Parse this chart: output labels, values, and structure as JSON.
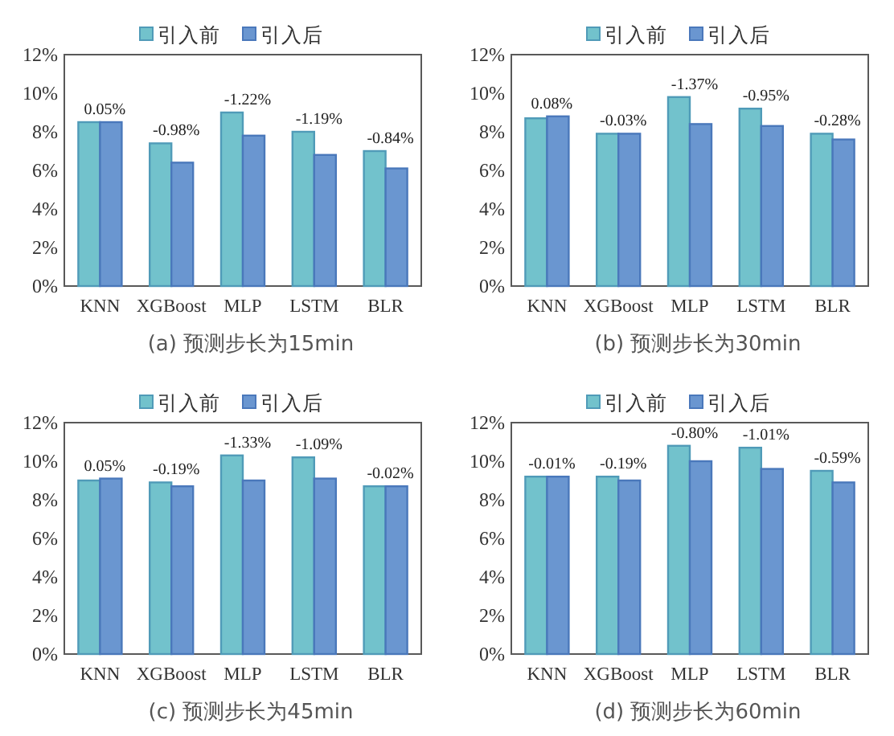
{
  "chart_data": [
    {
      "type": "bar",
      "title": "(a) 预测步长为15min",
      "categories": [
        "KNN",
        "XGBoost",
        "MLP",
        "LSTM",
        "BLR"
      ],
      "series": [
        {
          "name": "引入前",
          "color": "#72c2cc",
          "values": [
            8.5,
            7.4,
            9.0,
            8.0,
            7.0
          ]
        },
        {
          "name": "引入后",
          "color": "#6a96d0",
          "values": [
            8.5,
            6.4,
            7.8,
            6.8,
            6.1
          ]
        }
      ],
      "ylim": [
        0,
        12
      ],
      "yticks": [
        {
          "value": 0,
          "label": "0%"
        },
        {
          "value": 2,
          "label": "2%"
        },
        {
          "value": 4,
          "label": "4%"
        },
        {
          "value": 6,
          "label": "6%"
        },
        {
          "value": 8,
          "label": "8%"
        },
        {
          "value": 10,
          "label": "10%"
        },
        {
          "value": 12,
          "label": "12%"
        }
      ],
      "legend": "top",
      "grid": false,
      "annotations": [
        {
          "text": "0.05%",
          "x": "KNN",
          "y": 8.5
        },
        {
          "text": "-0.98%",
          "x": "XGBoost",
          "y": 7.4
        },
        {
          "text": "-1.22%",
          "x": "MLP",
          "y": 9.0
        },
        {
          "text": "-1.19%",
          "x": "LSTM",
          "y": 8.0
        },
        {
          "text": "-0.84%",
          "x": "BLR",
          "y": 7.0
        }
      ]
    },
    {
      "type": "bar",
      "title": "(b) 预测步长为30min",
      "categories": [
        "KNN",
        "XGBoost",
        "MLP",
        "LSTM",
        "BLR"
      ],
      "series": [
        {
          "name": "引入前",
          "color": "#72c2cc",
          "values": [
            8.7,
            7.9,
            9.8,
            9.2,
            7.9
          ]
        },
        {
          "name": "引入后",
          "color": "#6a96d0",
          "values": [
            8.8,
            7.9,
            8.4,
            8.3,
            7.6
          ]
        }
      ],
      "ylim": [
        0,
        12
      ],
      "yticks": [
        {
          "value": 0,
          "label": "0%"
        },
        {
          "value": 2,
          "label": "2%"
        },
        {
          "value": 4,
          "label": "4%"
        },
        {
          "value": 6,
          "label": "6%"
        },
        {
          "value": 8,
          "label": "8%"
        },
        {
          "value": 10,
          "label": "10%"
        },
        {
          "value": 12,
          "label": "12%"
        }
      ],
      "legend": "top",
      "grid": false,
      "annotations": [
        {
          "text": "0.08%",
          "x": "KNN",
          "y": 8.8
        },
        {
          "text": "-0.03%",
          "x": "XGBoost",
          "y": 7.9
        },
        {
          "text": "-1.37%",
          "x": "MLP",
          "y": 9.8
        },
        {
          "text": "-0.95%",
          "x": "LSTM",
          "y": 9.2
        },
        {
          "text": "-0.28%",
          "x": "BLR",
          "y": 7.9
        }
      ]
    },
    {
      "type": "bar",
      "title": "(c) 预测步长为45min",
      "categories": [
        "KNN",
        "XGBoost",
        "MLP",
        "LSTM",
        "BLR"
      ],
      "series": [
        {
          "name": "引入前",
          "color": "#72c2cc",
          "values": [
            9.0,
            8.9,
            10.3,
            10.2,
            8.7
          ]
        },
        {
          "name": "引入后",
          "color": "#6a96d0",
          "values": [
            9.1,
            8.7,
            9.0,
            9.1,
            8.7
          ]
        }
      ],
      "ylim": [
        0,
        12
      ],
      "yticks": [
        {
          "value": 0,
          "label": "0%"
        },
        {
          "value": 2,
          "label": "2%"
        },
        {
          "value": 4,
          "label": "4%"
        },
        {
          "value": 6,
          "label": "6%"
        },
        {
          "value": 8,
          "label": "8%"
        },
        {
          "value": 10,
          "label": "10%"
        },
        {
          "value": 12,
          "label": "12%"
        }
      ],
      "legend": "top",
      "grid": false,
      "annotations": [
        {
          "text": "0.05%",
          "x": "KNN",
          "y": 9.1
        },
        {
          "text": "-0.19%",
          "x": "XGBoost",
          "y": 8.9
        },
        {
          "text": "-1.33%",
          "x": "MLP",
          "y": 10.3
        },
        {
          "text": "-1.09%",
          "x": "LSTM",
          "y": 10.2
        },
        {
          "text": "-0.02%",
          "x": "BLR",
          "y": 8.7
        }
      ]
    },
    {
      "type": "bar",
      "title": "(d) 预测步长为60min",
      "categories": [
        "KNN",
        "XGBoost",
        "MLP",
        "LSTM",
        "BLR"
      ],
      "series": [
        {
          "name": "引入前",
          "color": "#72c2cc",
          "values": [
            9.2,
            9.2,
            10.8,
            10.7,
            9.5
          ]
        },
        {
          "name": "引入后",
          "color": "#6a96d0",
          "values": [
            9.2,
            9.0,
            10.0,
            9.6,
            8.9
          ]
        }
      ],
      "ylim": [
        0,
        12
      ],
      "yticks": [
        {
          "value": 0,
          "label": "0%"
        },
        {
          "value": 2,
          "label": "2%"
        },
        {
          "value": 4,
          "label": "4%"
        },
        {
          "value": 6,
          "label": "6%"
        },
        {
          "value": 8,
          "label": "8%"
        },
        {
          "value": 10,
          "label": "10%"
        },
        {
          "value": 12,
          "label": "12%"
        }
      ],
      "legend": "top",
      "grid": false,
      "annotations": [
        {
          "text": "-0.01%",
          "x": "KNN",
          "y": 9.2
        },
        {
          "text": "-0.19%",
          "x": "XGBoost",
          "y": 9.2
        },
        {
          "text": "-0.80%",
          "x": "MLP",
          "y": 10.8
        },
        {
          "text": "-1.01%",
          "x": "LSTM",
          "y": 10.7
        },
        {
          "text": "-0.59%",
          "x": "BLR",
          "y": 9.5
        }
      ]
    }
  ]
}
